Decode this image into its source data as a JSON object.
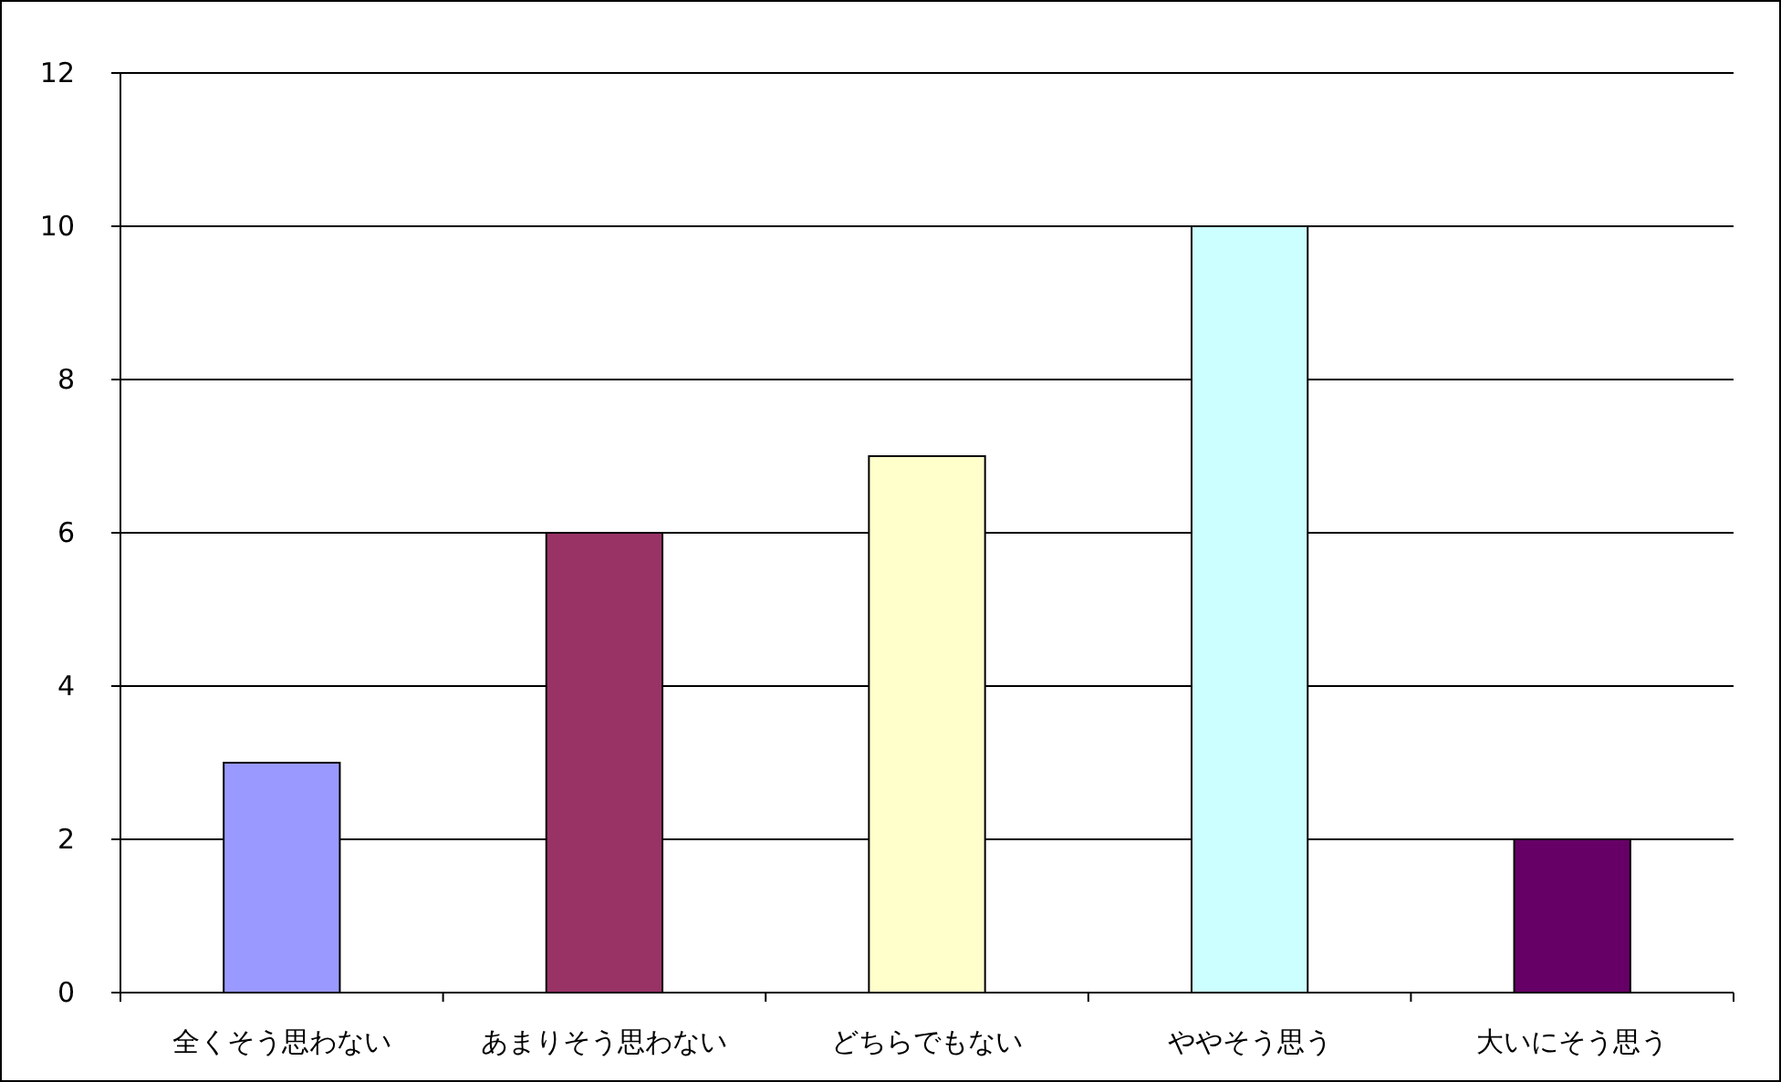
{
  "chart_data": {
    "type": "bar",
    "categories": [
      "全くそう思わない",
      "あまりそう思わない",
      "どちらでもない",
      "ややそう思う",
      "大いにそう思う"
    ],
    "values": [
      3,
      6,
      7,
      10,
      2
    ],
    "colors": [
      "#9999ff",
      "#993366",
      "#ffffcc",
      "#ccffff",
      "#660066"
    ],
    "ylim": [
      0,
      12
    ],
    "yticks": [
      0,
      2,
      4,
      6,
      8,
      10,
      12
    ],
    "grid": "y"
  }
}
